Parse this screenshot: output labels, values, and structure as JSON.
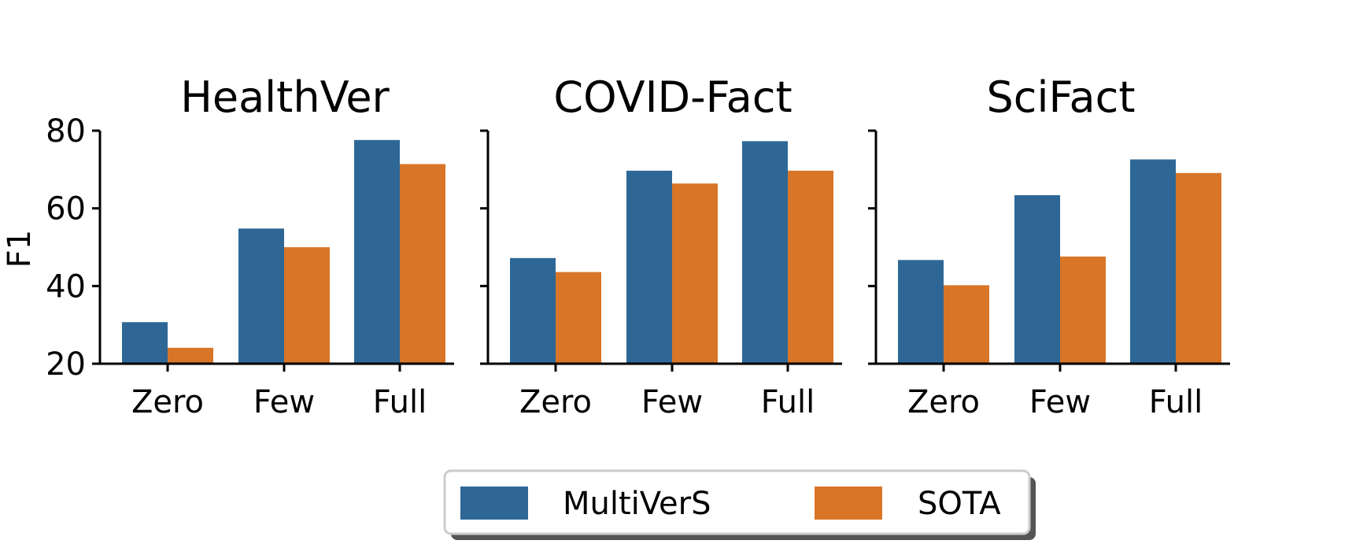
{
  "chart_data": {
    "type": "bar",
    "ylabel": "F1",
    "ylim": [
      20,
      80
    ],
    "yticks": [
      20,
      40,
      60,
      80
    ],
    "categories": [
      "Zero",
      "Few",
      "Full"
    ],
    "legend": {
      "placement": "bottom-center",
      "entries": [
        "MultiVerS",
        "SOTA"
      ]
    },
    "colors": {
      "MultiVerS": "#2e6796",
      "SOTA": "#d97527"
    },
    "panels": [
      {
        "title": "HealthVer",
        "series": [
          {
            "name": "MultiVerS",
            "values": [
              30.7,
              54.8,
              77.6
            ]
          },
          {
            "name": "SOTA",
            "values": [
              24.1,
              50.0,
              71.4
            ]
          }
        ]
      },
      {
        "title": "COVID-Fact",
        "series": [
          {
            "name": "MultiVerS",
            "values": [
              47.2,
              69.7,
              77.3
            ]
          },
          {
            "name": "SOTA",
            "values": [
              43.6,
              66.4,
              69.7
            ]
          }
        ]
      },
      {
        "title": "SciFact",
        "series": [
          {
            "name": "MultiVerS",
            "values": [
              46.7,
              63.4,
              72.6
            ]
          },
          {
            "name": "SOTA",
            "values": [
              40.2,
              47.6,
              69.1
            ]
          }
        ]
      }
    ]
  }
}
